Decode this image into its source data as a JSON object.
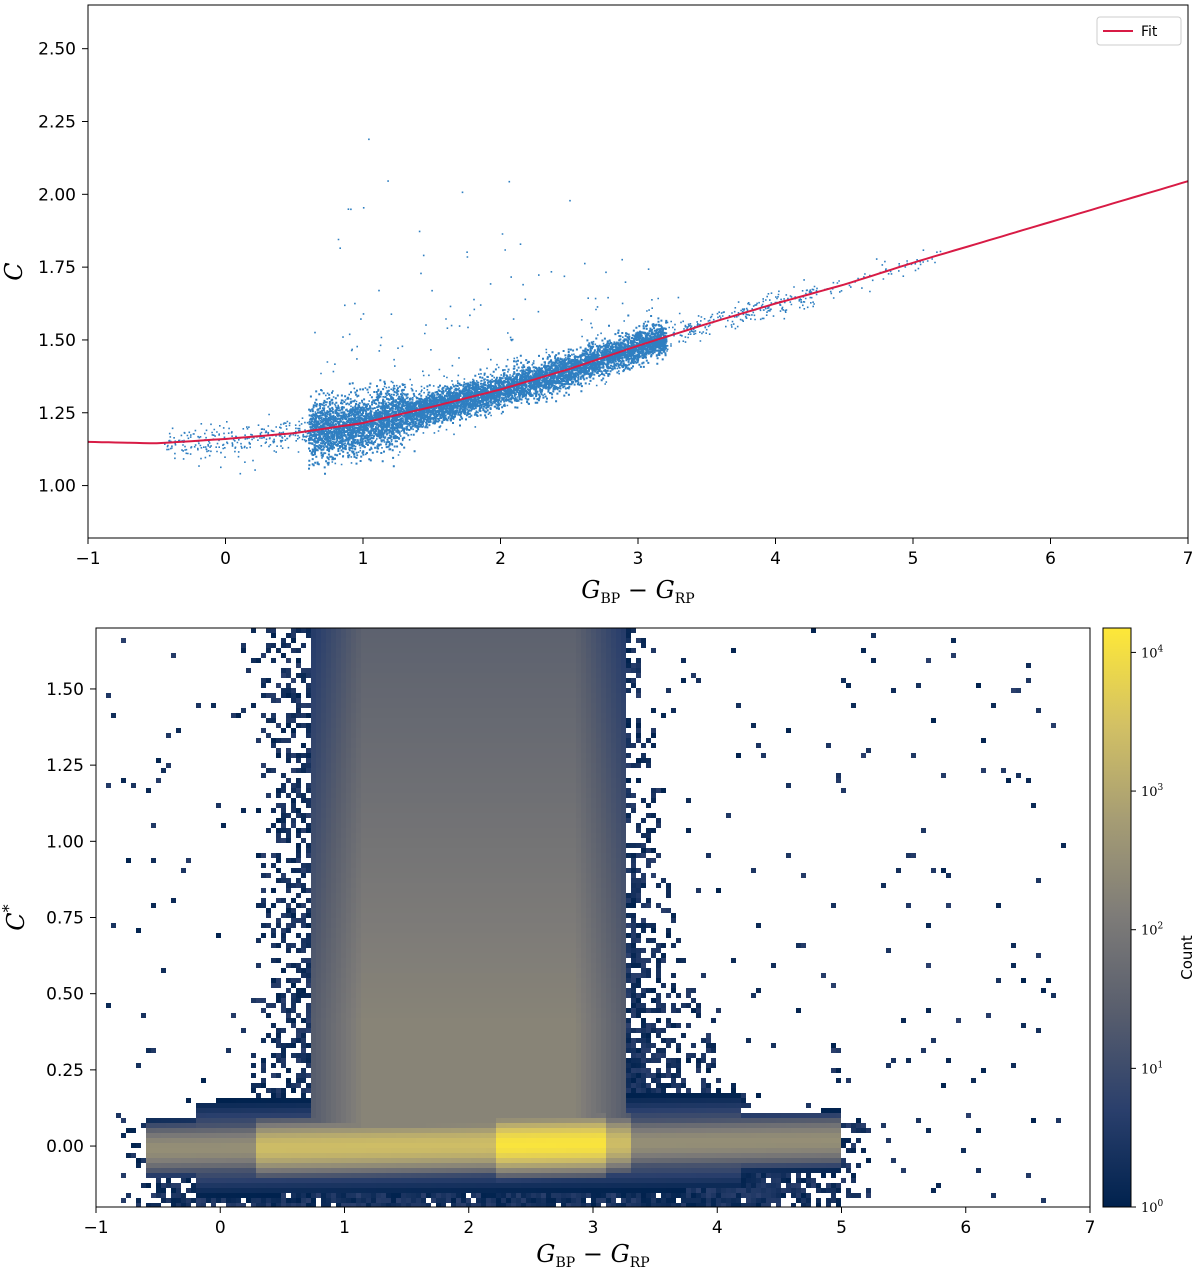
{
  "chart_data": [
    {
      "type": "scatter",
      "title": "",
      "xlabel_main": "G",
      "xlabel_sub1": "BP",
      "xlabel_minus": "−",
      "xlabel_main2": "G",
      "xlabel_sub2": "RP",
      "ylabel": "C",
      "xlim": [
        -1,
        7
      ],
      "ylim": [
        0.82,
        2.65
      ],
      "xticks": [
        -1,
        0,
        1,
        2,
        3,
        4,
        5,
        6,
        7
      ],
      "xtick_labels": [
        "−1",
        "0",
        "1",
        "2",
        "3",
        "4",
        "5",
        "6",
        "7"
      ],
      "yticks": [
        1.0,
        1.25,
        1.5,
        1.75,
        2.0,
        2.25,
        2.5
      ],
      "ytick_labels": [
        "1.00",
        "1.25",
        "1.50",
        "1.75",
        "2.00",
        "2.25",
        "2.50"
      ],
      "legend": {
        "placement": "top-right",
        "entries": [
          "Fit"
        ]
      },
      "colors": {
        "points": "#2f7fc1",
        "fit": "#d81b45"
      },
      "series": [
        {
          "name": "Fit",
          "kind": "line",
          "x": [
            -1.0,
            -0.5,
            0.0,
            0.5,
            1.0,
            1.5,
            2.0,
            2.5,
            3.0,
            3.5,
            4.0,
            4.5,
            5.0,
            5.5,
            6.0,
            6.5,
            7.0
          ],
          "y": [
            1.15,
            1.145,
            1.16,
            1.18,
            1.215,
            1.27,
            1.33,
            1.4,
            1.48,
            1.555,
            1.625,
            1.69,
            1.765,
            1.835,
            1.905,
            1.975,
            2.045
          ]
        }
      ]
    },
    {
      "type": "heatmap",
      "title": "",
      "xlabel_main": "G",
      "xlabel_sub1": "BP",
      "xlabel_minus": "−",
      "xlabel_main2": "G",
      "xlabel_sub2": "RP",
      "ylabel_main": "C",
      "ylabel_sup": "*",
      "xlim": [
        -1,
        7
      ],
      "ylim": [
        -0.2,
        1.7
      ],
      "xticks": [
        -1,
        0,
        1,
        2,
        3,
        4,
        5,
        6,
        7
      ],
      "xtick_labels": [
        "−1",
        "0",
        "1",
        "2",
        "3",
        "4",
        "5",
        "6",
        "7"
      ],
      "yticks": [
        0.0,
        0.25,
        0.5,
        0.75,
        1.0,
        1.25,
        1.5
      ],
      "ytick_labels": [
        "0.00",
        "0.25",
        "0.50",
        "0.75",
        "1.00",
        "1.25",
        "1.50"
      ],
      "colorbar": {
        "label": "Count",
        "scale": "log",
        "range": [
          1,
          15000
        ],
        "ticks": [
          {
            "base": "10",
            "exp": "0",
            "value": 1
          },
          {
            "base": "10",
            "exp": "1",
            "value": 10
          },
          {
            "base": "10",
            "exp": "2",
            "value": 100
          },
          {
            "base": "10",
            "exp": "3",
            "value": 1000
          },
          {
            "base": "10",
            "exp": "4",
            "value": 10000
          }
        ],
        "colormap": [
          "#00224e",
          "#2a3f6c",
          "#575d6d",
          "#7d7b78",
          "#a59c74",
          "#d3c164",
          "#fee838"
        ]
      }
    }
  ]
}
